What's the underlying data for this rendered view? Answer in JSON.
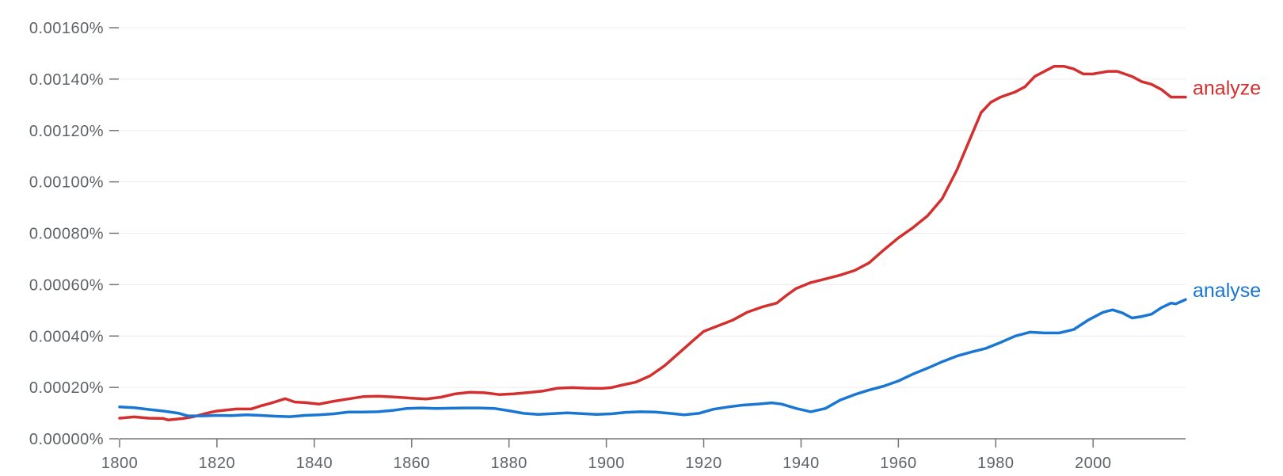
{
  "chart_data": {
    "type": "line",
    "title": "",
    "xlabel": "",
    "ylabel": "",
    "xlim": [
      1800,
      2019
    ],
    "ylim": [
      0,
      0.0016
    ],
    "grid": true,
    "legend": "inline-right",
    "x_ticks": [
      1800,
      1820,
      1840,
      1860,
      1880,
      1900,
      1920,
      1940,
      1960,
      1980,
      2000
    ],
    "x_tick_labels": [
      "1800",
      "1820",
      "1840",
      "1860",
      "1880",
      "1900",
      "1920",
      "1940",
      "1960",
      "1980",
      "2000"
    ],
    "y_ticks": [
      0,
      0.0002,
      0.0004,
      0.0006,
      0.0008,
      0.001,
      0.0012,
      0.0014,
      0.0016
    ],
    "y_tick_labels": [
      "0.00000%",
      "0.00020%",
      "0.00040%",
      "0.00060%",
      "0.00080%",
      "0.00100%",
      "0.00120%",
      "0.00140%",
      "0.00160%"
    ],
    "series": [
      {
        "name": "analyze",
        "color": "#d32f2f",
        "points": [
          [
            1800,
            8e-05
          ],
          [
            1803,
            8.5e-05
          ],
          [
            1806,
            8e-05
          ],
          [
            1809,
            7.9e-05
          ],
          [
            1810,
            7.3e-05
          ],
          [
            1813,
            7.9e-05
          ],
          [
            1815,
            8.5e-05
          ],
          [
            1818,
            0.0001
          ],
          [
            1820,
            0.000108
          ],
          [
            1824,
            0.000116
          ],
          [
            1827,
            0.000116
          ],
          [
            1829,
            0.000128
          ],
          [
            1831,
            0.000138
          ],
          [
            1834,
            0.000156
          ],
          [
            1836,
            0.000143
          ],
          [
            1838,
            0.000141
          ],
          [
            1841,
            0.000135
          ],
          [
            1844,
            0.000146
          ],
          [
            1847,
            0.000155
          ],
          [
            1850,
            0.000164
          ],
          [
            1853,
            0.000166
          ],
          [
            1856,
            0.000163
          ],
          [
            1860,
            0.000158
          ],
          [
            1863,
            0.000155
          ],
          [
            1866,
            0.000162
          ],
          [
            1869,
            0.000175
          ],
          [
            1872,
            0.000181
          ],
          [
            1875,
            0.000179
          ],
          [
            1878,
            0.000172
          ],
          [
            1881,
            0.000175
          ],
          [
            1884,
            0.00018
          ],
          [
            1887,
            0.000186
          ],
          [
            1890,
            0.000197
          ],
          [
            1893,
            0.000199
          ],
          [
            1896,
            0.000197
          ],
          [
            1899,
            0.000196
          ],
          [
            1901,
            0.000199
          ],
          [
            1903,
            0.000208
          ],
          [
            1906,
            0.00022
          ],
          [
            1909,
            0.000245
          ],
          [
            1912,
            0.000285
          ],
          [
            1915,
            0.000335
          ],
          [
            1918,
            0.000385
          ],
          [
            1920,
            0.000418
          ],
          [
            1923,
            0.00044
          ],
          [
            1926,
            0.000462
          ],
          [
            1929,
            0.000493
          ],
          [
            1932,
            0.000513
          ],
          [
            1935,
            0.000528
          ],
          [
            1937,
            0.000558
          ],
          [
            1939,
            0.000585
          ],
          [
            1942,
            0.000608
          ],
          [
            1945,
            0.000622
          ],
          [
            1948,
            0.000637
          ],
          [
            1951,
            0.000655
          ],
          [
            1954,
            0.000685
          ],
          [
            1957,
            0.000735
          ],
          [
            1960,
            0.000782
          ],
          [
            1963,
            0.000822
          ],
          [
            1966,
            0.000868
          ],
          [
            1969,
            0.000935
          ],
          [
            1972,
            0.001045
          ],
          [
            1975,
            0.00118
          ],
          [
            1977,
            0.00127
          ],
          [
            1979,
            0.00131
          ],
          [
            1981,
            0.00133
          ],
          [
            1984,
            0.00135
          ],
          [
            1986,
            0.00137
          ],
          [
            1988,
            0.00141
          ],
          [
            1990,
            0.00143
          ],
          [
            1992,
            0.00145
          ],
          [
            1994,
            0.00145
          ],
          [
            1996,
            0.00144
          ],
          [
            1998,
            0.00142
          ],
          [
            2000,
            0.00142
          ],
          [
            2003,
            0.00143
          ],
          [
            2005,
            0.00143
          ],
          [
            2008,
            0.00141
          ],
          [
            2010,
            0.00139
          ],
          [
            2012,
            0.00138
          ],
          [
            2014,
            0.00136
          ],
          [
            2016,
            0.00133
          ],
          [
            2019,
            0.00133
          ]
        ]
      },
      {
        "name": "analyse",
        "color": "#1976d2",
        "points": [
          [
            1800,
            0.000124
          ],
          [
            1803,
            0.000121
          ],
          [
            1806,
            0.000114
          ],
          [
            1809,
            0.000108
          ],
          [
            1812,
            0.0001
          ],
          [
            1814,
            8.9e-05
          ],
          [
            1817,
            8.9e-05
          ],
          [
            1820,
            9.1e-05
          ],
          [
            1823,
            9e-05
          ],
          [
            1826,
            9.3e-05
          ],
          [
            1829,
            9.1e-05
          ],
          [
            1832,
            8.8e-05
          ],
          [
            1835,
            8.6e-05
          ],
          [
            1838,
            9.1e-05
          ],
          [
            1841,
            9.3e-05
          ],
          [
            1844,
            9.7e-05
          ],
          [
            1847,
            0.000104
          ],
          [
            1850,
            0.000104
          ],
          [
            1853,
            0.000105
          ],
          [
            1856,
            0.00011
          ],
          [
            1859,
            0.000118
          ],
          [
            1862,
            0.00012
          ],
          [
            1865,
            0.000118
          ],
          [
            1868,
            0.000119
          ],
          [
            1871,
            0.00012
          ],
          [
            1874,
            0.00012
          ],
          [
            1877,
            0.000118
          ],
          [
            1880,
            0.000109
          ],
          [
            1883,
            9.9e-05
          ],
          [
            1886,
            9.5e-05
          ],
          [
            1889,
            9.8e-05
          ],
          [
            1892,
            0.000101
          ],
          [
            1895,
            9.8e-05
          ],
          [
            1898,
            9.5e-05
          ],
          [
            1901,
            9.7e-05
          ],
          [
            1904,
            0.000103
          ],
          [
            1907,
            0.000105
          ],
          [
            1910,
            0.000104
          ],
          [
            1913,
            9.9e-05
          ],
          [
            1916,
            9.3e-05
          ],
          [
            1919,
            9.9e-05
          ],
          [
            1922,
            0.000115
          ],
          [
            1925,
            0.000124
          ],
          [
            1928,
            0.000131
          ],
          [
            1931,
            0.000135
          ],
          [
            1934,
            0.00014
          ],
          [
            1936,
            0.000135
          ],
          [
            1939,
            0.000118
          ],
          [
            1942,
            0.000105
          ],
          [
            1945,
            0.000118
          ],
          [
            1948,
            0.00015
          ],
          [
            1951,
            0.000172
          ],
          [
            1954,
            0.00019
          ],
          [
            1957,
            0.000205
          ],
          [
            1960,
            0.000225
          ],
          [
            1963,
            0.000252
          ],
          [
            1966,
            0.000275
          ],
          [
            1969,
            0.0003
          ],
          [
            1972,
            0.000322
          ],
          [
            1975,
            0.000338
          ],
          [
            1978,
            0.000352
          ],
          [
            1981,
            0.000375
          ],
          [
            1984,
            0.0004
          ],
          [
            1987,
            0.000415
          ],
          [
            1990,
            0.000412
          ],
          [
            1993,
            0.000412
          ],
          [
            1996,
            0.000425
          ],
          [
            1999,
            0.000462
          ],
          [
            2002,
            0.000492
          ],
          [
            2004,
            0.000502
          ],
          [
            2006,
            0.00049
          ],
          [
            2008,
            0.00047
          ],
          [
            2010,
            0.000476
          ],
          [
            2012,
            0.000485
          ],
          [
            2014,
            0.00051
          ],
          [
            2016,
            0.000528
          ],
          [
            2017,
            0.000525
          ],
          [
            2019,
            0.000542
          ]
        ]
      }
    ]
  }
}
